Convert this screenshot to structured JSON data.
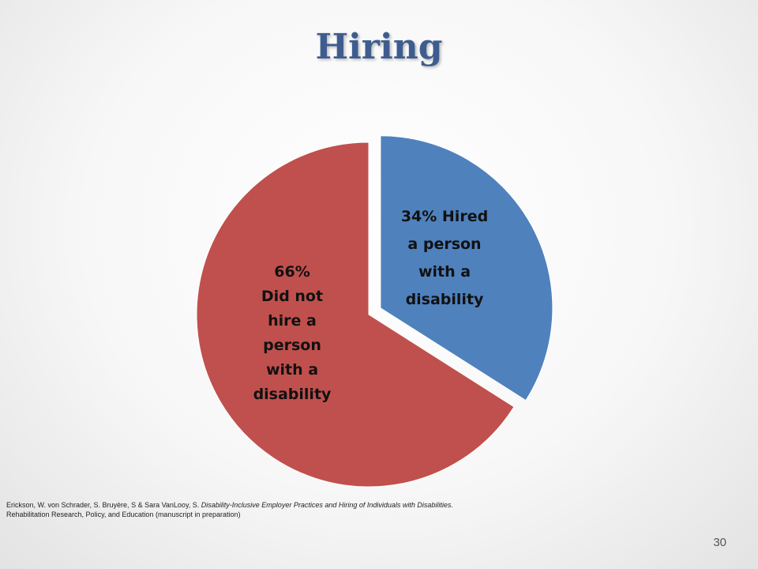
{
  "slide": {
    "title": "Hiring",
    "page_number": "30",
    "citation": {
      "authors": "Erickson, W. von Schrader, S. Bruyère, S & Sara VanLooy, S. ",
      "title": "Disability-Inclusive Employer Practices and Hiring of Individuals with Disabilities.",
      "journal": "Rehabilitation Research, Policy, and Education (manuscript in preparation)"
    }
  },
  "chart_data": {
    "type": "pie",
    "title": "",
    "slices": [
      {
        "percent": "34%",
        "value": 34,
        "color": "#4f81bd",
        "exploded": true,
        "label_lines": [
          "34% Hired",
          "a person",
          "with a",
          "disability"
        ]
      },
      {
        "percent": "66%",
        "value": 66,
        "color": "#c0504d",
        "exploded": false,
        "label_lines": [
          "66%",
          "Did not",
          "hire a",
          "person",
          "with a",
          "disability"
        ]
      }
    ]
  }
}
